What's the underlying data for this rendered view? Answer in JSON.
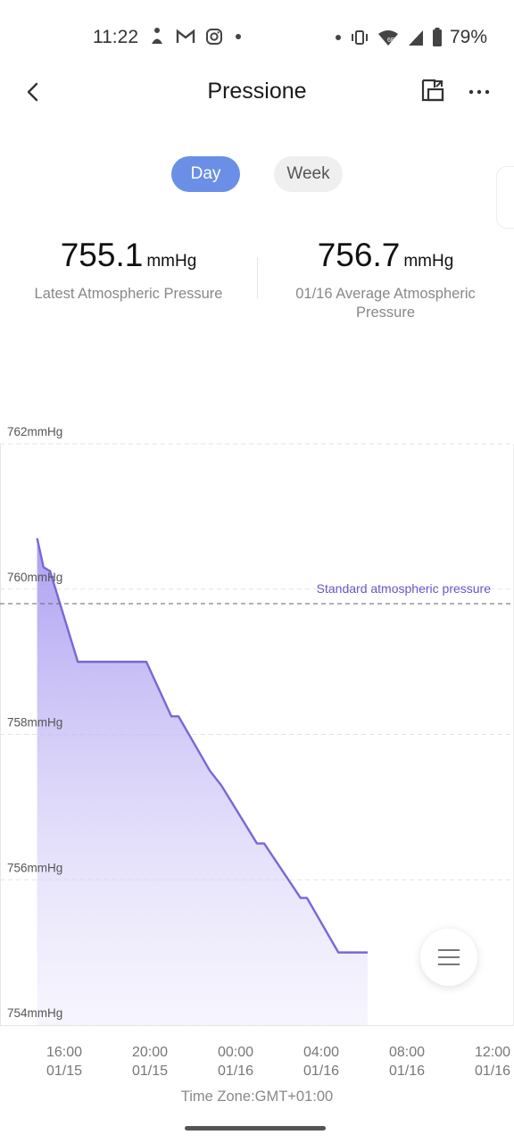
{
  "status_bar": {
    "time": "11:22",
    "left_icons": [
      "meditation-icon",
      "gmail-icon",
      "instagram-icon",
      "dot-icon"
    ],
    "right_icons": [
      "dot-icon",
      "vibrate-icon",
      "wifi-6e-icon",
      "signal-icon",
      "battery-icon"
    ],
    "battery": "79%"
  },
  "header": {
    "title": "Pressione"
  },
  "tabs": [
    {
      "label": "Day",
      "selected": true
    },
    {
      "label": "Week",
      "selected": false
    }
  ],
  "stats": {
    "latest": {
      "value": "755.1",
      "unit": "mmHg",
      "label": "Latest Atmospheric Pressure"
    },
    "average": {
      "value": "756.7",
      "unit": "mmHg",
      "label": "01/16 Average Atmospheric Pressure"
    }
  },
  "chart_data": {
    "type": "area",
    "ylabel_unit": "mmHg",
    "y_ticks": [
      "762mmHg",
      "760mmHg",
      "758mmHg",
      "756mmHg",
      "754mmHg"
    ],
    "ylim": [
      754,
      762
    ],
    "x_ticks": [
      {
        "time": "16:00",
        "date": "01/15"
      },
      {
        "time": "20:00",
        "date": "01/15"
      },
      {
        "time": "00:00",
        "date": "01/16"
      },
      {
        "time": "04:00",
        "date": "01/16"
      },
      {
        "time": "08:00",
        "date": "01/16"
      },
      {
        "time": "12:00",
        "date": "01/16"
      }
    ],
    "reference_line": {
      "label": "Standard atmospheric pressure",
      "value": 759.8
    },
    "series": [
      {
        "color": "#7a66d6",
        "points": [
          {
            "t": "01/15 14:44",
            "y": 760.7
          },
          {
            "t": "01/15 15:02",
            "y": 760.3
          },
          {
            "t": "01/15 15:20",
            "y": 760.25
          },
          {
            "t": "01/15 16:38",
            "y": 759.0
          },
          {
            "t": "01/15 17:15",
            "y": 759.0
          },
          {
            "t": "01/15 19:50",
            "y": 759.0
          },
          {
            "t": "01/15 21:00",
            "y": 758.25
          },
          {
            "t": "01/15 21:20",
            "y": 758.25
          },
          {
            "t": "01/15 22:48",
            "y": 757.5
          },
          {
            "t": "01/15 23:20",
            "y": 757.3
          },
          {
            "t": "01/16 01:00",
            "y": 756.5
          },
          {
            "t": "01/16 01:20",
            "y": 756.5
          },
          {
            "t": "01/16 03:02",
            "y": 755.75
          },
          {
            "t": "01/16 03:20",
            "y": 755.75
          },
          {
            "t": "01/16 04:48",
            "y": 755.0
          },
          {
            "t": "01/16 06:10",
            "y": 755.0
          }
        ]
      }
    ],
    "timezone": "Time Zone:GMT+01:00"
  },
  "colors": {
    "accent": "#6b8fe6",
    "series": "#7a66d6",
    "fill_top": "#a99af0"
  }
}
